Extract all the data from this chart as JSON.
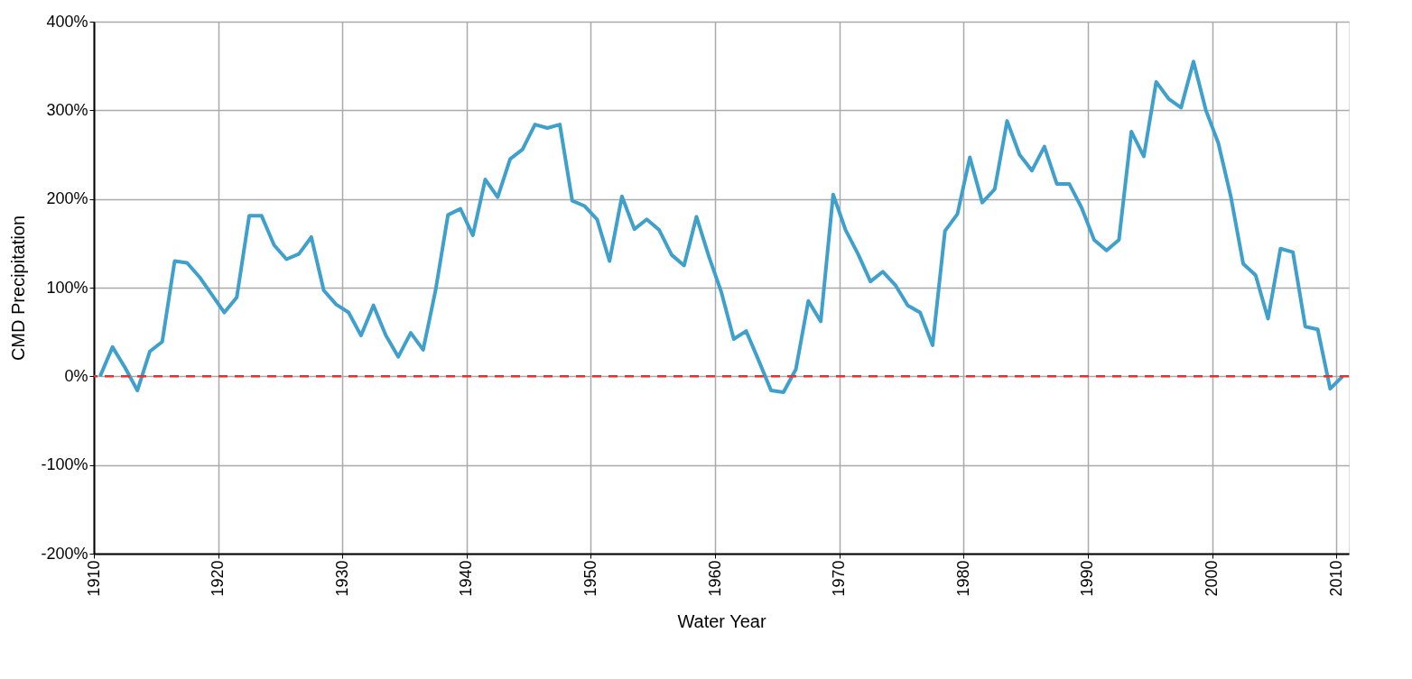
{
  "chart_data": {
    "type": "line",
    "xlabel": "Water Year",
    "ylabel": "CMD Precipitation",
    "x": [
      1910.5,
      1911.5,
      1912.5,
      1913.5,
      1914.5,
      1915.5,
      1916.5,
      1917.5,
      1918.5,
      1919.5,
      1920.5,
      1921.5,
      1922.5,
      1923.5,
      1924.5,
      1925.5,
      1926.5,
      1927.5,
      1928.5,
      1929.5,
      1930.5,
      1931.5,
      1932.5,
      1933.5,
      1934.5,
      1935.5,
      1936.5,
      1937.5,
      1938.5,
      1939.5,
      1940.5,
      1941.5,
      1942.5,
      1943.5,
      1944.5,
      1945.5,
      1946.5,
      1947.5,
      1948.5,
      1949.5,
      1950.5,
      1951.5,
      1952.5,
      1953.5,
      1954.5,
      1955.5,
      1956.5,
      1957.5,
      1958.5,
      1959.5,
      1960.5,
      1961.5,
      1962.5,
      1963.5,
      1964.5,
      1965.5,
      1966.5,
      1967.5,
      1968.5,
      1969.5,
      1970.5,
      1971.5,
      1972.5,
      1973.5,
      1974.5,
      1975.5,
      1976.5,
      1977.5,
      1978.5,
      1979.5,
      1980.5,
      1981.5,
      1982.5,
      1983.5,
      1984.5,
      1985.5,
      1986.5,
      1987.5,
      1988.5,
      1989.5,
      1990.5,
      1991.5,
      1992.5,
      1993.5,
      1994.5,
      1995.5,
      1996.5,
      1997.5,
      1998.5,
      1999.5,
      2000.5,
      2001.5,
      2002.5,
      2003.5,
      2004.5,
      2005.5,
      2006.5,
      2007.5,
      2008.5,
      2009.5,
      2010.5
    ],
    "series": [
      {
        "color": "#3fa0cc",
        "values": [
          0,
          33,
          10,
          -16,
          28,
          39,
          130,
          128,
          112,
          92,
          72,
          89,
          181,
          181,
          148,
          132,
          138,
          157,
          97,
          81,
          72,
          46,
          80,
          46,
          22,
          49,
          30,
          97,
          182,
          189,
          159,
          222,
          202,
          245,
          256,
          284,
          280,
          284,
          198,
          192,
          177,
          130,
          203,
          166,
          177,
          165,
          137,
          125,
          180,
          135,
          95,
          42,
          51,
          18,
          -16,
          -18,
          8,
          85,
          62,
          205,
          165,
          138,
          107,
          118,
          103,
          80,
          72,
          35,
          164,
          183,
          247,
          196,
          211,
          288,
          250,
          232,
          259,
          217,
          217,
          190,
          154,
          142,
          154,
          276,
          248,
          332,
          313,
          303,
          355,
          300,
          263,
          203,
          127,
          114,
          65,
          144,
          140,
          56,
          53,
          -14,
          0
        ]
      }
    ],
    "xlim": [
      1910,
      2011
    ],
    "xticks": [
      1910,
      1920,
      1930,
      1940,
      1950,
      1960,
      1970,
      1980,
      1990,
      2000,
      2010
    ],
    "ylim": [
      -200,
      400
    ],
    "yticks": [
      {
        "value": -200,
        "label": "-200%"
      },
      {
        "value": -100,
        "label": "-100%"
      },
      {
        "value": 0,
        "label": "0%"
      },
      {
        "value": 100,
        "label": "100%"
      },
      {
        "value": 200,
        "label": "200%"
      },
      {
        "value": 300,
        "label": "300%"
      },
      {
        "value": 400,
        "label": "400%"
      }
    ],
    "ref_lines": [
      {
        "axis": "y",
        "value": 0,
        "color": "#e8302f",
        "line_style": "dashed"
      }
    ],
    "grid": true,
    "line_style": "solid"
  }
}
